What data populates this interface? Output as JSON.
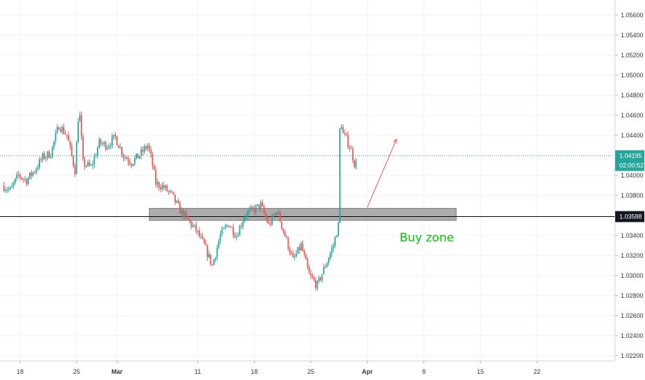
{
  "colors": {
    "up": "#26a69a",
    "down": "#ef5350",
    "grid": "#f0f3fa",
    "axis": "#d1d4dc",
    "current_price_line": "#26a69a",
    "level_line": "#000000",
    "zone_fill": "#9e9e9e",
    "arrow": "#ef5350",
    "annotation_text": "#00c800"
  },
  "chart_data": {
    "type": "candlestick",
    "y_axis": {
      "min": 1.0215,
      "max": 1.0575,
      "ticks": [
        "1.05600",
        "1.05400",
        "1.05200",
        "1.05000",
        "1.04800",
        "1.04600",
        "1.04400",
        "1.04000",
        "1.03800",
        "1.03400",
        "1.03200",
        "1.03000",
        "1.02800",
        "1.02600",
        "1.02400",
        "1.02200"
      ]
    },
    "x_axis": {
      "ticks": [
        {
          "label": "18",
          "day": 0,
          "bold": false
        },
        {
          "label": "25",
          "day": 7,
          "bold": false
        },
        {
          "label": "Mar",
          "day": 12,
          "bold": true
        },
        {
          "label": "11",
          "day": 22,
          "bold": false
        },
        {
          "label": "18",
          "day": 29,
          "bold": false
        },
        {
          "label": "25",
          "day": 36,
          "bold": false
        },
        {
          "label": "Apr",
          "day": 43,
          "bold": true
        },
        {
          "label": "8",
          "day": 50,
          "bold": false
        },
        {
          "label": "15",
          "day": 57,
          "bold": false
        },
        {
          "label": "22",
          "day": 64,
          "bold": false
        }
      ]
    },
    "current_price": {
      "value": "1.04195",
      "countdown": "02:00:52",
      "price": 1.04195
    },
    "level": {
      "value": "1.03588",
      "price": 1.03588
    },
    "zone": {
      "from_day": 16,
      "to_day": 54,
      "low": 1.0355,
      "high": 1.0367
    },
    "arrow": {
      "from_day": 43,
      "from_price": 1.0368,
      "to_day": 46.6,
      "to_price": 1.0436
    },
    "annotation": {
      "text": "Buy zone",
      "day": 47,
      "price": 1.0338
    },
    "waypoints": [
      [
        -2,
        1.039
      ],
      [
        -1,
        1.0385
      ],
      [
        0,
        1.04
      ],
      [
        1,
        1.0395
      ],
      [
        2,
        1.0405
      ],
      [
        3,
        1.0418
      ],
      [
        4,
        1.0422
      ],
      [
        5,
        1.045
      ],
      [
        6,
        1.044
      ],
      [
        7,
        1.0405
      ],
      [
        7.5,
        1.047
      ],
      [
        8,
        1.0412
      ],
      [
        9,
        1.0408
      ],
      [
        10,
        1.0432
      ],
      [
        11,
        1.043
      ],
      [
        12,
        1.0438
      ],
      [
        13,
        1.042
      ],
      [
        14,
        1.0413
      ],
      [
        15,
        1.042
      ],
      [
        16,
        1.043
      ],
      [
        16.5,
        1.0415
      ],
      [
        17,
        1.0392
      ],
      [
        18,
        1.0388
      ],
      [
        19,
        1.038
      ],
      [
        20,
        1.0365
      ],
      [
        21,
        1.0355
      ],
      [
        22,
        1.0345
      ],
      [
        23,
        1.033
      ],
      [
        24,
        1.031
      ],
      [
        25,
        1.034
      ],
      [
        26,
        1.0352
      ],
      [
        27,
        1.034
      ],
      [
        28,
        1.036
      ],
      [
        29,
        1.0365
      ],
      [
        30,
        1.037
      ],
      [
        31,
        1.035
      ],
      [
        32,
        1.0365
      ],
      [
        33,
        1.034
      ],
      [
        34,
        1.0315
      ],
      [
        35,
        1.033
      ],
      [
        36,
        1.03
      ],
      [
        37,
        1.029
      ],
      [
        38,
        1.031
      ],
      [
        39,
        1.033
      ],
      [
        39.6,
        1.035
      ],
      [
        39.8,
        1.0445
      ],
      [
        40.5,
        1.0438
      ],
      [
        41.2,
        1.0425
      ],
      [
        41.6,
        1.0412
      ]
    ]
  }
}
